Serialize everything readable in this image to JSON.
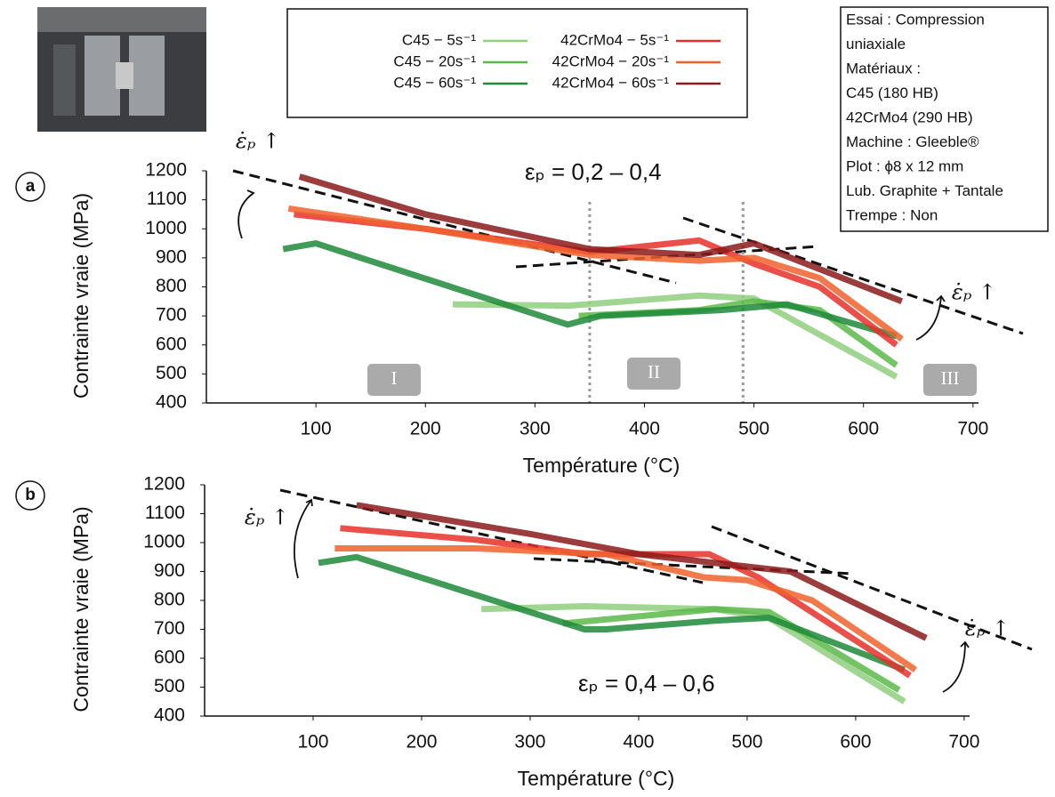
{
  "chart_data": [
    {
      "type": "line",
      "panel": "a",
      "annotation": "εₚ = 0,2 – 0,4",
      "rate_annotation": "ε̇ₚ ↑",
      "regime_labels": [
        "I",
        "II",
        "III"
      ],
      "vlines": [
        350,
        490
      ],
      "x_label": "Température (°C)",
      "y_label": "Contrainte vraie (MPa)",
      "xlim": [
        0,
        705
      ],
      "ylim": [
        400,
        1200
      ],
      "xticks": [
        100,
        200,
        300,
        400,
        500,
        600,
        700
      ],
      "yticks": [
        400,
        500,
        600,
        700,
        800,
        900,
        1000,
        1100,
        1200
      ],
      "series": [
        {
          "name": "C45 − 5s⁻¹",
          "color": "#8fcf7e",
          "x": [
            225,
            330,
            450,
            500,
            630
          ],
          "values": [
            740,
            735,
            770,
            760,
            490
          ]
        },
        {
          "name": "C45 − 20s⁻¹",
          "color": "#5cb84a",
          "x": [
            340,
            450,
            500,
            560,
            630
          ],
          "values": [
            700,
            720,
            750,
            720,
            530
          ]
        },
        {
          "name": "C45 − 60s⁻¹",
          "color": "#1f8a3a",
          "x": [
            70,
            100,
            330,
            360,
            470,
            530,
            630
          ],
          "values": [
            930,
            950,
            670,
            700,
            720,
            740,
            630
          ]
        },
        {
          "name": "42CrMo4 − 5s⁻¹",
          "color": "#e8302a",
          "x": [
            80,
            200,
            350,
            450,
            500,
            560,
            630
          ],
          "values": [
            1050,
            1000,
            920,
            960,
            880,
            800,
            600
          ]
        },
        {
          "name": "42CrMo4 − 20s⁻¹",
          "color": "#f0612d",
          "x": [
            75,
            200,
            350,
            450,
            500,
            560,
            635
          ],
          "values": [
            1070,
            1000,
            910,
            890,
            900,
            830,
            620
          ]
        },
        {
          "name": "42CrMo4 − 60s⁻¹",
          "color": "#8b1a1a",
          "x": [
            85,
            200,
            350,
            450,
            500,
            635
          ],
          "values": [
            1180,
            1050,
            930,
            910,
            950,
            750
          ]
        }
      ]
    },
    {
      "type": "line",
      "panel": "b",
      "annotation": "εₚ = 0,4 – 0,6",
      "rate_annotation": "ε̇ₚ ↑",
      "x_label": "Température (°C)",
      "y_label": "Contrainte vraie (MPa)",
      "xlim": [
        0,
        705
      ],
      "ylim": [
        400,
        1200
      ],
      "xticks": [
        100,
        200,
        300,
        400,
        500,
        600,
        700
      ],
      "yticks": [
        400,
        500,
        600,
        700,
        800,
        900,
        1000,
        1100,
        1200
      ],
      "series": [
        {
          "color": "#8fcf7e",
          "x": [
            255,
            350,
            470,
            520,
            645
          ],
          "values": [
            770,
            780,
            770,
            740,
            450
          ]
        },
        {
          "color": "#5cb84a",
          "x": [
            330,
            470,
            520,
            640
          ],
          "values": [
            720,
            770,
            760,
            490
          ]
        },
        {
          "color": "#1f8a3a",
          "x": [
            105,
            140,
            350,
            370,
            470,
            520,
            645
          ],
          "values": [
            930,
            950,
            700,
            700,
            730,
            740,
            560
          ]
        },
        {
          "color": "#e8302a",
          "x": [
            125,
            250,
            350,
            465,
            510,
            650
          ],
          "values": [
            1050,
            1010,
            960,
            960,
            880,
            540
          ]
        },
        {
          "color": "#f0612d",
          "x": [
            120,
            250,
            370,
            460,
            500,
            560,
            655
          ],
          "values": [
            980,
            980,
            960,
            880,
            870,
            800,
            560
          ]
        },
        {
          "color": "#8b1a1a",
          "x": [
            140,
            300,
            400,
            470,
            540,
            665
          ],
          "values": [
            1130,
            1030,
            960,
            930,
            900,
            670
          ]
        }
      ]
    }
  ],
  "info_box": [
    "Essai : Compression",
    "uniaxiale",
    "Matériaux :",
    "C45 (180 HB)",
    "42CrMo4 (290 HB)",
    "Machine : Gleeble®",
    "Plot : ϕ8 x 12 mm",
    "Lub. Graphite + Tantale",
    "Trempe : Non"
  ]
}
